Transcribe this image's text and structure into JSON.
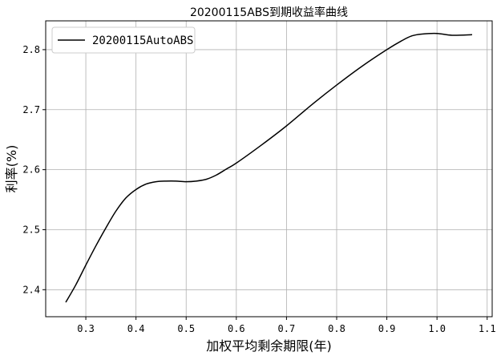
{
  "chart_data": {
    "type": "line",
    "title": "20200115ABS到期收益率曲线",
    "xlabel": "加权平均剩余期限(年)",
    "ylabel": "利率(%)",
    "xlim": [
      0.22,
      1.11
    ],
    "ylim": [
      2.355,
      2.848
    ],
    "xticks": [
      "0.3",
      "0.4",
      "0.5",
      "0.6",
      "0.7",
      "0.8",
      "0.9",
      "1.0",
      "1.1"
    ],
    "yticks": [
      "2.4",
      "2.5",
      "2.6",
      "2.7",
      "2.8"
    ],
    "grid": true,
    "legend_position": "top-left",
    "series": [
      {
        "name": "20200115AutoABS",
        "color": "#000000",
        "x": [
          0.26,
          0.28,
          0.3,
          0.32,
          0.34,
          0.36,
          0.38,
          0.4,
          0.42,
          0.44,
          0.46,
          0.48,
          0.5,
          0.52,
          0.54,
          0.56,
          0.58,
          0.6,
          0.65,
          0.7,
          0.75,
          0.8,
          0.85,
          0.9,
          0.93,
          0.95,
          0.97,
          1.0,
          1.03,
          1.07
        ],
        "y": [
          2.379,
          2.408,
          2.441,
          2.473,
          2.503,
          2.531,
          2.553,
          2.567,
          2.576,
          2.58,
          2.581,
          2.581,
          2.58,
          2.581,
          2.584,
          2.591,
          2.601,
          2.611,
          2.641,
          2.673,
          2.708,
          2.741,
          2.772,
          2.8,
          2.815,
          2.823,
          2.826,
          2.827,
          2.824,
          2.825
        ]
      }
    ]
  }
}
